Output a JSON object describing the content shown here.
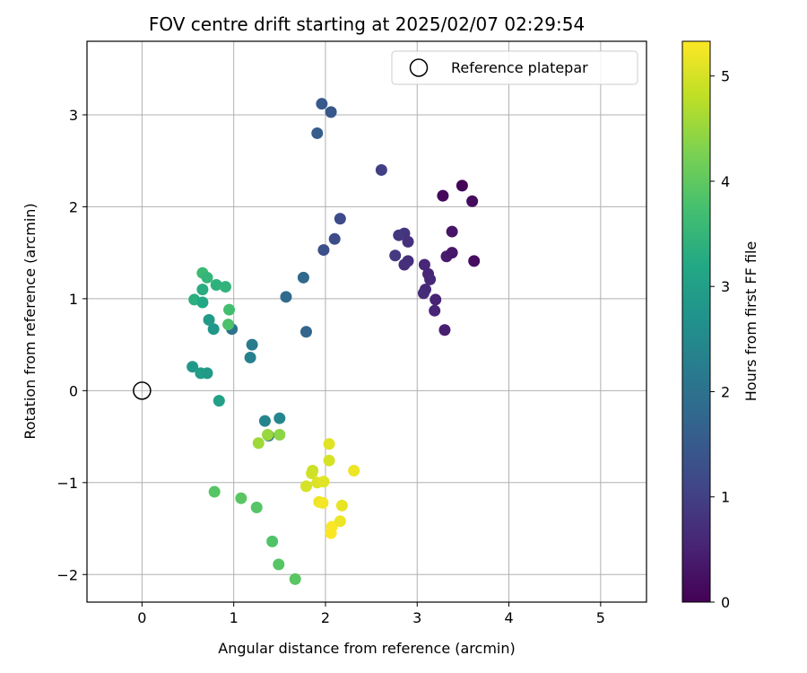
{
  "chart_data": {
    "type": "scatter",
    "title": "FOV centre drift starting at 2025/02/07 02:29:54",
    "xlabel": "Angular distance from reference (arcmin)",
    "ylabel": "Rotation from reference (arcmin)",
    "xlim": [
      -0.6,
      5.5
    ],
    "ylim": [
      -2.3,
      3.8
    ],
    "xticks": [
      0,
      1,
      2,
      3,
      4,
      5
    ],
    "xtick_labels": [
      "0",
      "1",
      "2",
      "3",
      "4",
      "5"
    ],
    "yticks": [
      -2,
      -1,
      0,
      1,
      2,
      3
    ],
    "ytick_labels": [
      "−2",
      "−1",
      "0",
      "1",
      "2",
      "3"
    ],
    "grid": true,
    "legend": {
      "location": "upper-right",
      "entries": [
        "Reference platepar"
      ]
    },
    "reference_point": {
      "name": "Reference platepar",
      "x": 0,
      "y": 0
    },
    "colorbar": {
      "label": "Hours from first FF file",
      "colormap": "viridis",
      "range": [
        0,
        5.33
      ],
      "ticks": [
        0,
        1,
        2,
        3,
        4,
        5
      ],
      "tick_labels": [
        "0",
        "1",
        "2",
        "3",
        "4",
        "5"
      ]
    },
    "points": [
      {
        "x": 3.49,
        "y": 2.23,
        "c": 0.05
      },
      {
        "x": 3.28,
        "y": 2.12,
        "c": 0.1
      },
      {
        "x": 3.6,
        "y": 2.06,
        "c": 0.15
      },
      {
        "x": 3.38,
        "y": 1.73,
        "c": 0.3
      },
      {
        "x": 3.32,
        "y": 1.46,
        "c": 0.4
      },
      {
        "x": 3.38,
        "y": 1.5,
        "c": 0.35
      },
      {
        "x": 3.62,
        "y": 1.41,
        "c": 0.2
      },
      {
        "x": 2.86,
        "y": 1.71,
        "c": 0.8
      },
      {
        "x": 2.8,
        "y": 1.69,
        "c": 0.85
      },
      {
        "x": 2.9,
        "y": 1.62,
        "c": 0.75
      },
      {
        "x": 2.76,
        "y": 1.47,
        "c": 0.9
      },
      {
        "x": 2.86,
        "y": 1.37,
        "c": 0.7
      },
      {
        "x": 2.9,
        "y": 1.41,
        "c": 0.72
      },
      {
        "x": 3.08,
        "y": 1.37,
        "c": 0.6
      },
      {
        "x": 3.12,
        "y": 1.27,
        "c": 0.55
      },
      {
        "x": 3.14,
        "y": 1.21,
        "c": 0.58
      },
      {
        "x": 3.09,
        "y": 1.1,
        "c": 0.62
      },
      {
        "x": 3.07,
        "y": 1.06,
        "c": 0.65
      },
      {
        "x": 3.2,
        "y": 0.99,
        "c": 0.5
      },
      {
        "x": 3.19,
        "y": 0.87,
        "c": 0.55
      },
      {
        "x": 3.3,
        "y": 0.66,
        "c": 0.45
      },
      {
        "x": 2.61,
        "y": 2.4,
        "c": 1.0
      },
      {
        "x": 2.16,
        "y": 1.87,
        "c": 1.2
      },
      {
        "x": 2.1,
        "y": 1.65,
        "c": 1.25
      },
      {
        "x": 1.98,
        "y": 1.53,
        "c": 1.3
      },
      {
        "x": 1.96,
        "y": 3.12,
        "c": 1.5
      },
      {
        "x": 2.06,
        "y": 3.03,
        "c": 1.45
      },
      {
        "x": 1.91,
        "y": 2.8,
        "c": 1.55
      },
      {
        "x": 1.76,
        "y": 1.23,
        "c": 1.8
      },
      {
        "x": 1.57,
        "y": 1.02,
        "c": 1.85
      },
      {
        "x": 1.79,
        "y": 0.64,
        "c": 1.75
      },
      {
        "x": 1.2,
        "y": 0.5,
        "c": 2.2
      },
      {
        "x": 1.18,
        "y": 0.36,
        "c": 2.3
      },
      {
        "x": 0.98,
        "y": 0.67,
        "c": 2.0
      },
      {
        "x": 1.34,
        "y": -0.33,
        "c": 2.4
      },
      {
        "x": 1.5,
        "y": -0.3,
        "c": 2.45
      },
      {
        "x": 1.38,
        "y": -0.49,
        "c": 2.0
      },
      {
        "x": 0.78,
        "y": 0.67,
        "c": 2.8
      },
      {
        "x": 0.73,
        "y": 0.77,
        "c": 2.9
      },
      {
        "x": 0.55,
        "y": 0.26,
        "c": 2.85
      },
      {
        "x": 0.64,
        "y": 0.19,
        "c": 2.95
      },
      {
        "x": 0.71,
        "y": 0.19,
        "c": 2.9
      },
      {
        "x": 0.84,
        "y": -0.11,
        "c": 3.0
      },
      {
        "x": 0.66,
        "y": 1.28,
        "c": 3.6
      },
      {
        "x": 0.71,
        "y": 1.23,
        "c": 3.5
      },
      {
        "x": 0.81,
        "y": 1.15,
        "c": 3.4
      },
      {
        "x": 0.91,
        "y": 1.13,
        "c": 3.45
      },
      {
        "x": 0.66,
        "y": 1.1,
        "c": 3.3
      },
      {
        "x": 0.57,
        "y": 0.99,
        "c": 3.35
      },
      {
        "x": 0.66,
        "y": 0.96,
        "c": 3.2
      },
      {
        "x": 0.95,
        "y": 0.88,
        "c": 3.7
      },
      {
        "x": 0.94,
        "y": 0.72,
        "c": 3.8
      },
      {
        "x": 0.79,
        "y": -1.1,
        "c": 3.9
      },
      {
        "x": 1.08,
        "y": -1.17,
        "c": 3.95
      },
      {
        "x": 1.25,
        "y": -1.27,
        "c": 3.9
      },
      {
        "x": 1.42,
        "y": -1.64,
        "c": 3.85
      },
      {
        "x": 1.49,
        "y": -1.89,
        "c": 3.9
      },
      {
        "x": 1.67,
        "y": -2.05,
        "c": 3.95
      },
      {
        "x": 1.37,
        "y": -0.48,
        "c": 4.5
      },
      {
        "x": 1.5,
        "y": -0.48,
        "c": 4.4
      },
      {
        "x": 1.27,
        "y": -0.57,
        "c": 4.55
      },
      {
        "x": 2.04,
        "y": -0.58,
        "c": 5.1
      },
      {
        "x": 2.04,
        "y": -0.76,
        "c": 5.0
      },
      {
        "x": 2.31,
        "y": -0.87,
        "c": 5.2
      },
      {
        "x": 1.86,
        "y": -0.87,
        "c": 4.9
      },
      {
        "x": 1.85,
        "y": -0.9,
        "c": 4.95
      },
      {
        "x": 1.79,
        "y": -1.04,
        "c": 5.0
      },
      {
        "x": 1.91,
        "y": -1.0,
        "c": 5.05
      },
      {
        "x": 1.98,
        "y": -0.99,
        "c": 5.1
      },
      {
        "x": 1.93,
        "y": -1.21,
        "c": 5.2
      },
      {
        "x": 1.97,
        "y": -1.22,
        "c": 5.25
      },
      {
        "x": 2.18,
        "y": -1.25,
        "c": 5.15
      },
      {
        "x": 2.07,
        "y": -1.48,
        "c": 5.3
      },
      {
        "x": 2.16,
        "y": -1.42,
        "c": 5.2
      },
      {
        "x": 2.06,
        "y": -1.55,
        "c": 5.3
      }
    ]
  }
}
